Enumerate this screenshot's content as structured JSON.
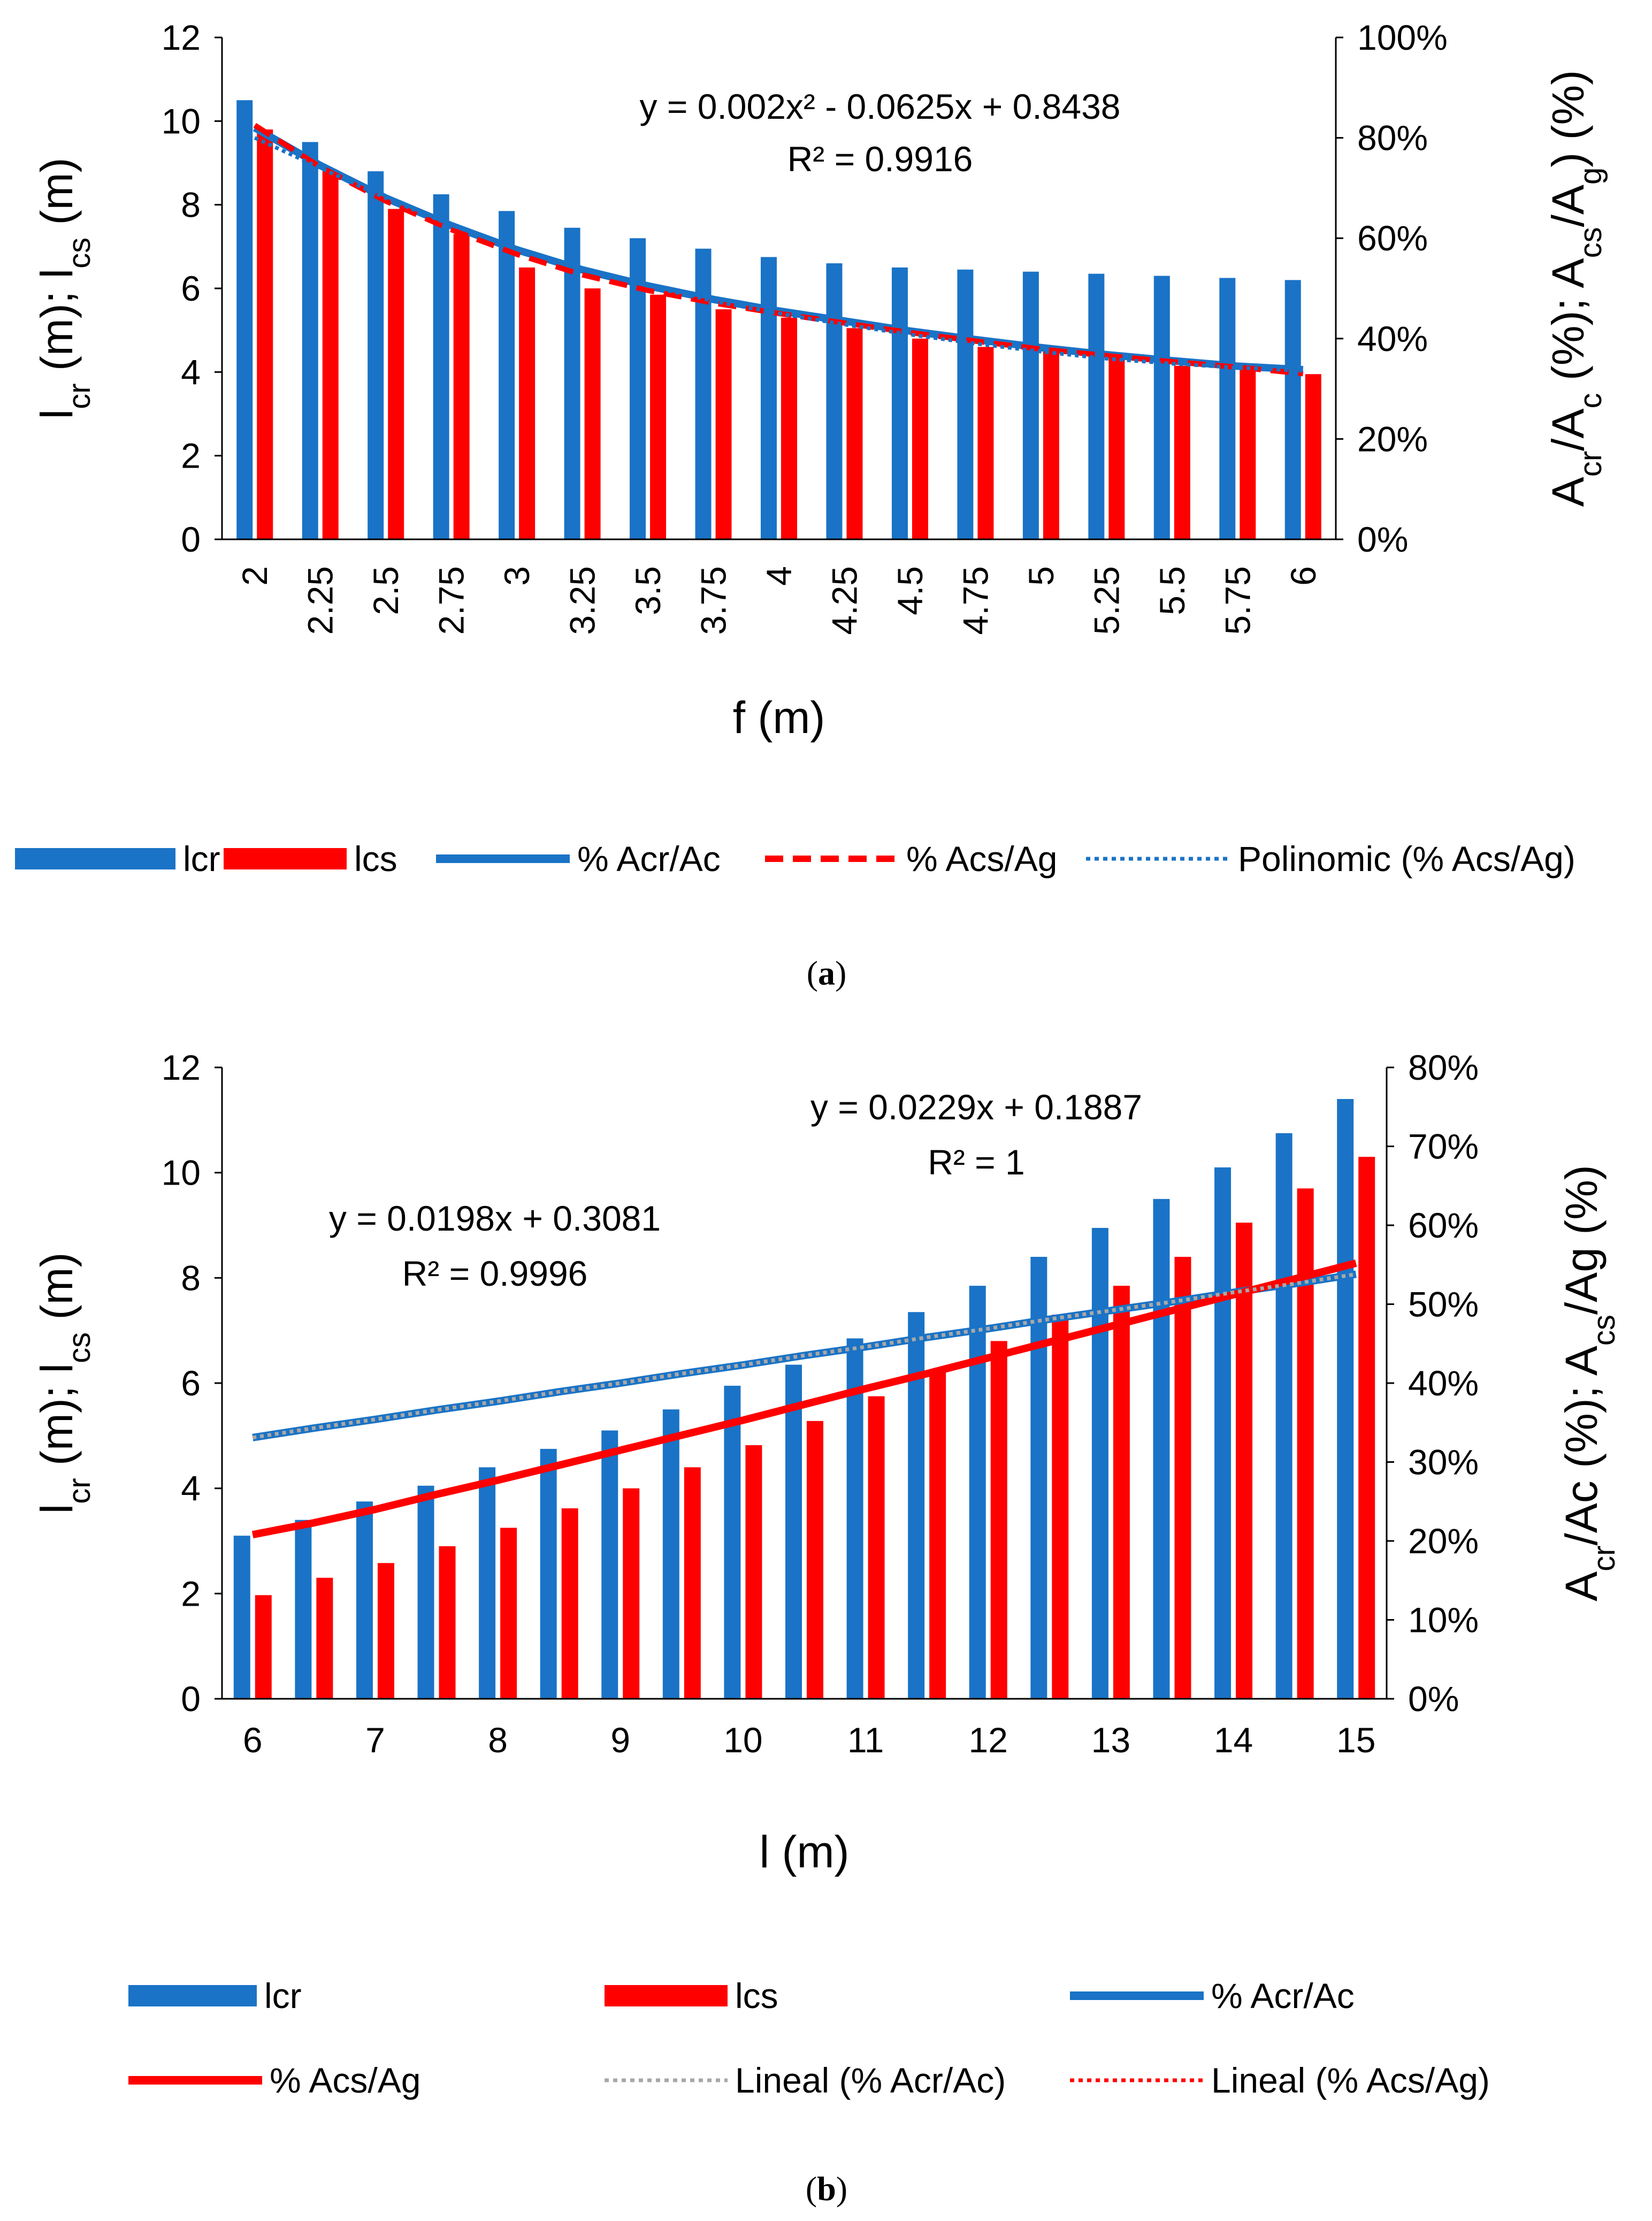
{
  "chart_data": [
    {
      "type": "bar",
      "panel": "a",
      "caption_letter": "a",
      "caption_open": "(",
      "caption_close": ")",
      "x_label": "f (m)",
      "y_left_label": {
        "base1": "l",
        "sub1": "cr",
        "mid": "  (m); l",
        "sub2": "cs",
        "end": " (m)"
      },
      "y_right_label": {
        "base1": "A",
        "sub1": "cr",
        "mid1": "/A",
        "sub2": "c",
        "mid2": " (%); A",
        "sub3": "cs",
        "mid3": "/A",
        "sub4": "g",
        "end": ") (%)"
      },
      "categories": [
        "2",
        "2.25",
        "2.5",
        "2.75",
        "3",
        "3.25",
        "3.5",
        "3.75",
        "4",
        "4.25",
        "4.5",
        "4.75",
        "5",
        "5.25",
        "5.5",
        "5.75",
        "6"
      ],
      "y_left_ticks": [
        "0",
        "2",
        "4",
        "6",
        "8",
        "10",
        "12"
      ],
      "y_left_range": [
        0,
        12
      ],
      "y_right_ticks": [
        "0%",
        "20%",
        "40%",
        "60%",
        "80%",
        "100%"
      ],
      "y_right_range": [
        0,
        1
      ],
      "series": [
        {
          "name": "lcr",
          "kind": "bar",
          "axis": "left",
          "color": "#1a73c6",
          "values": [
            10.5,
            9.5,
            8.8,
            8.25,
            7.85,
            7.45,
            7.2,
            6.95,
            6.75,
            6.6,
            6.5,
            6.45,
            6.4,
            6.35,
            6.3,
            6.25,
            6.2
          ]
        },
        {
          "name": "lcs",
          "kind": "bar",
          "axis": "left",
          "color": "#ff0000",
          "values": [
            9.8,
            8.8,
            7.9,
            7.3,
            6.5,
            6.0,
            5.85,
            5.5,
            5.3,
            5.05,
            4.8,
            4.6,
            4.5,
            4.35,
            4.15,
            4.05,
            3.95
          ]
        },
        {
          "name": "% Acr/Ac",
          "kind": "line",
          "style": "solid",
          "axis": "right",
          "color": "#1a73c6",
          "values": [
            0.82,
            0.745,
            0.68,
            0.625,
            0.577,
            0.537,
            0.505,
            0.478,
            0.455,
            0.435,
            0.415,
            0.398,
            0.382,
            0.368,
            0.356,
            0.345,
            0.338
          ]
        },
        {
          "name": "% Acs/Ag",
          "kind": "line",
          "style": "dashed",
          "axis": "right",
          "color": "#ff0000",
          "values": [
            0.825,
            0.742,
            0.674,
            0.617,
            0.568,
            0.527,
            0.496,
            0.471,
            0.45,
            0.431,
            0.412,
            0.395,
            0.379,
            0.366,
            0.354,
            0.343,
            0.33
          ]
        },
        {
          "name": "Polinomic   (% Acs/Ag)",
          "kind": "line",
          "style": "dotted",
          "axis": "right",
          "color": "#1a73c6",
          "values": [
            0.8,
            0.74,
            0.68,
            0.626,
            0.58,
            0.54,
            0.505,
            0.475,
            0.45,
            0.428,
            0.408,
            0.39,
            0.374,
            0.36,
            0.35,
            0.342,
            0.336
          ]
        }
      ],
      "legend": [
        "lcr",
        "lcs",
        "% Acr/Ac",
        "% Acs/Ag",
        "Polinomic   (% Acs/Ag)"
      ],
      "annotations": [
        {
          "text": "y = 0.002x² - 0.0625x + 0.8438"
        },
        {
          "text": "R² = 0.9916"
        }
      ]
    },
    {
      "type": "bar",
      "panel": "b",
      "caption_letter": "b",
      "caption_open": "(",
      "caption_close": ")",
      "x_label": "l (m)",
      "y_left_label": {
        "base1": "l",
        "sub1": "cr",
        "mid": " (m);  l",
        "sub2": "cs",
        "end": " (m)"
      },
      "y_right_label": {
        "base1": "A",
        "sub1": "cr",
        "mid1": "/Ac (%); A",
        "sub2": "cs",
        "end": "/Ag (%)"
      },
      "categories": [
        "6",
        "6.5",
        "7",
        "7.5",
        "8",
        "8.5",
        "9",
        "9.5",
        "10",
        "10.5",
        "11",
        "11.5",
        "12",
        "12.5",
        "13",
        "13.5",
        "14",
        "14.5",
        "15"
      ],
      "x_tick_labels": [
        "6",
        "7",
        "8",
        "9",
        "10",
        "11",
        "12",
        "13",
        "14",
        "15"
      ],
      "y_left_ticks": [
        "0",
        "2",
        "4",
        "6",
        "8",
        "10",
        "12"
      ],
      "y_left_range": [
        0,
        12
      ],
      "y_right_ticks": [
        "0%",
        "10%",
        "20%",
        "30%",
        "40%",
        "50%",
        "60%",
        "70%",
        "80%"
      ],
      "y_right_range": [
        0,
        0.8
      ],
      "series": [
        {
          "name": "lcr",
          "kind": "bar",
          "axis": "left",
          "color": "#1a73c6",
          "values": [
            3.1,
            3.4,
            3.75,
            4.05,
            4.4,
            4.75,
            5.1,
            5.5,
            5.95,
            6.35,
            6.85,
            7.35,
            7.85,
            8.4,
            8.95,
            9.5,
            10.1,
            10.75,
            11.4
          ]
        },
        {
          "name": "lcs",
          "kind": "bar",
          "axis": "left",
          "color": "#ff0000",
          "values": [
            1.97,
            2.3,
            2.58,
            2.9,
            3.25,
            3.62,
            4.0,
            4.4,
            4.82,
            5.28,
            5.75,
            6.25,
            6.8,
            7.3,
            7.85,
            8.4,
            9.05,
            9.7,
            10.3
          ]
        },
        {
          "name": "% Acr/Ac",
          "kind": "line",
          "style": "solid",
          "axis": "right",
          "color": "#1a73c6",
          "values": [
            0.331,
            0.343,
            0.354,
            0.366,
            0.377,
            0.389,
            0.4,
            0.412,
            0.423,
            0.435,
            0.446,
            0.458,
            0.469,
            0.481,
            0.492,
            0.503,
            0.515,
            0.526,
            0.538
          ]
        },
        {
          "name": "% Acs/Ag",
          "kind": "line",
          "style": "solid",
          "axis": "right",
          "color": "#ff0000",
          "values": [
            0.208,
            0.223,
            0.24,
            0.259,
            0.277,
            0.296,
            0.315,
            0.334,
            0.353,
            0.373,
            0.393,
            0.412,
            0.432,
            0.452,
            0.472,
            0.492,
            0.512,
            0.532,
            0.552
          ]
        },
        {
          "name": "Lineal (% Acr/Ac)",
          "kind": "line",
          "style": "dotted",
          "axis": "right",
          "color": "#a8a8a8",
          "values": [
            0.331,
            0.343,
            0.354,
            0.366,
            0.377,
            0.389,
            0.4,
            0.412,
            0.423,
            0.435,
            0.446,
            0.458,
            0.469,
            0.481,
            0.492,
            0.503,
            0.515,
            0.526,
            0.538
          ]
        },
        {
          "name": "Lineal (% Acs/Ag)",
          "kind": "line",
          "style": "dotted",
          "axis": "right",
          "color": "#ff0000",
          "values": [
            0.208,
            0.223,
            0.24,
            0.259,
            0.277,
            0.296,
            0.315,
            0.334,
            0.353,
            0.373,
            0.393,
            0.412,
            0.432,
            0.452,
            0.472,
            0.492,
            0.512,
            0.532,
            0.552
          ]
        }
      ],
      "legend": [
        "lcr",
        "lcs",
        "% Acr/Ac",
        "% Acs/Ag",
        "Lineal (% Acr/Ac)",
        "Lineal (% Acs/Ag)"
      ],
      "annotations": [
        {
          "text": "y = 0.0229x + 0.1887"
        },
        {
          "text": "R² = 1"
        },
        {
          "text": "y = 0.0198x + 0.3081"
        },
        {
          "text": "R² = 0.9996"
        }
      ]
    }
  ]
}
